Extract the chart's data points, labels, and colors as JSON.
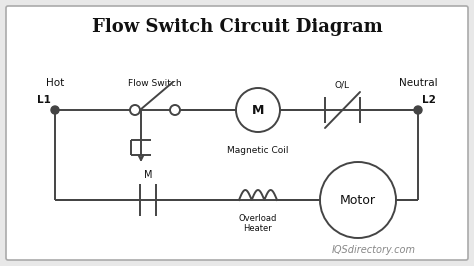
{
  "title": "Flow Switch Circuit Diagram",
  "background": "#e8e8e8",
  "inner_bg": "#ffffff",
  "line_color": "#444444",
  "text_color": "#111111",
  "lw": 1.4,
  "labels": {
    "hot": "Hot",
    "neutral": "Neutral",
    "L1": "L1",
    "L2": "L2",
    "flow_switch": "Flow Switch",
    "magnetic_coil": "Magnetic Coil",
    "OL": "O/L",
    "M_contact": "M",
    "overload_heater": "Overload\nHeater",
    "motor": "Motor",
    "watermark": "IQSdirectory.com"
  },
  "fig_width": 4.74,
  "fig_height": 2.66,
  "dpi": 100
}
